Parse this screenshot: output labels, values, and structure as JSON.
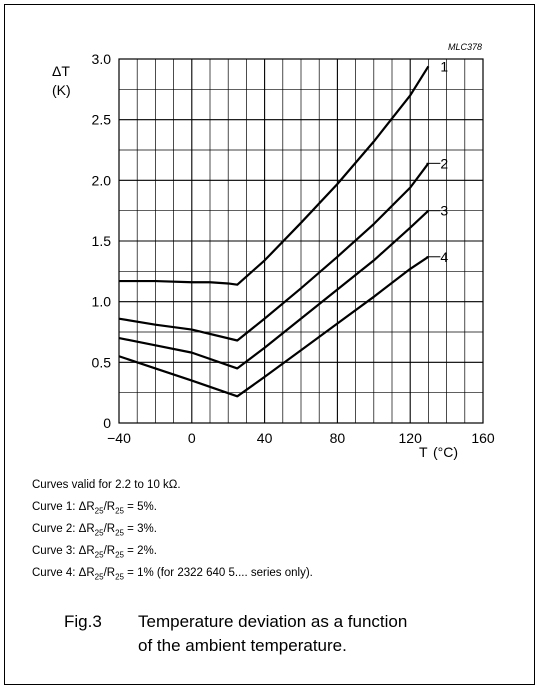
{
  "chart_data": {
    "type": "line",
    "code": "MLC378",
    "ylabel": "ΔT",
    "ylabel_unit": "(K)",
    "xlabel": "T",
    "xlabel_unit": "(°C)",
    "xlim": [
      -40,
      160
    ],
    "ylim": [
      0,
      3.0
    ],
    "x_ticks": [
      "−40",
      "0",
      "40",
      "80",
      "120",
      "160"
    ],
    "y_ticks": [
      "0",
      "0.5",
      "1.0",
      "1.5",
      "2.0",
      "2.5",
      "3.0"
    ],
    "grid": true,
    "series": [
      {
        "name": "1",
        "x": [
          -40,
          -20,
          0,
          10,
          20,
          25,
          40,
          60,
          80,
          100,
          120,
          130
        ],
        "y": [
          1.17,
          1.17,
          1.16,
          1.16,
          1.15,
          1.14,
          1.34,
          1.65,
          1.97,
          2.32,
          2.7,
          2.94
        ]
      },
      {
        "name": "2",
        "x": [
          -40,
          -20,
          0,
          25,
          40,
          60,
          80,
          100,
          120,
          130
        ],
        "y": [
          0.86,
          0.81,
          0.77,
          0.68,
          0.86,
          1.11,
          1.37,
          1.64,
          1.94,
          2.14
        ]
      },
      {
        "name": "3",
        "x": [
          -40,
          -20,
          0,
          25,
          40,
          60,
          80,
          100,
          120,
          130
        ],
        "y": [
          0.7,
          0.64,
          0.58,
          0.45,
          0.62,
          0.86,
          1.1,
          1.34,
          1.61,
          1.75
        ]
      },
      {
        "name": "4",
        "x": [
          -40,
          -20,
          0,
          25,
          40,
          60,
          80,
          100,
          120,
          130
        ],
        "y": [
          0.55,
          0.45,
          0.35,
          0.22,
          0.38,
          0.6,
          0.82,
          1.04,
          1.27,
          1.37
        ]
      }
    ]
  },
  "notes": {
    "line1": "Curves valid for 2.2 to 10 kΩ.",
    "c1_prefix": "Curve 1: ΔR",
    "c1_sub1": "25",
    "c1_mid": "/R",
    "c1_sub2": "25",
    "c1_suffix": " = 5%.",
    "c2_prefix": "Curve 2: ΔR",
    "c2_sub1": "25",
    "c2_mid": "/R",
    "c2_sub2": "25",
    "c2_suffix": " = 3%.",
    "c3_prefix": "Curve 3: ΔR",
    "c3_sub1": "25",
    "c3_mid": "/R",
    "c3_sub2": "25",
    "c3_suffix": " = 2%.",
    "c4_prefix": "Curve 4: ΔR",
    "c4_sub1": "25",
    "c4_mid": "/R",
    "c4_sub2": "25",
    "c4_suffix": " = 1% (for 2322 640 5.... series only)."
  },
  "caption": {
    "label": "Fig.3",
    "line1": "Temperature deviation as a function",
    "line2": "of the ambient temperature."
  }
}
